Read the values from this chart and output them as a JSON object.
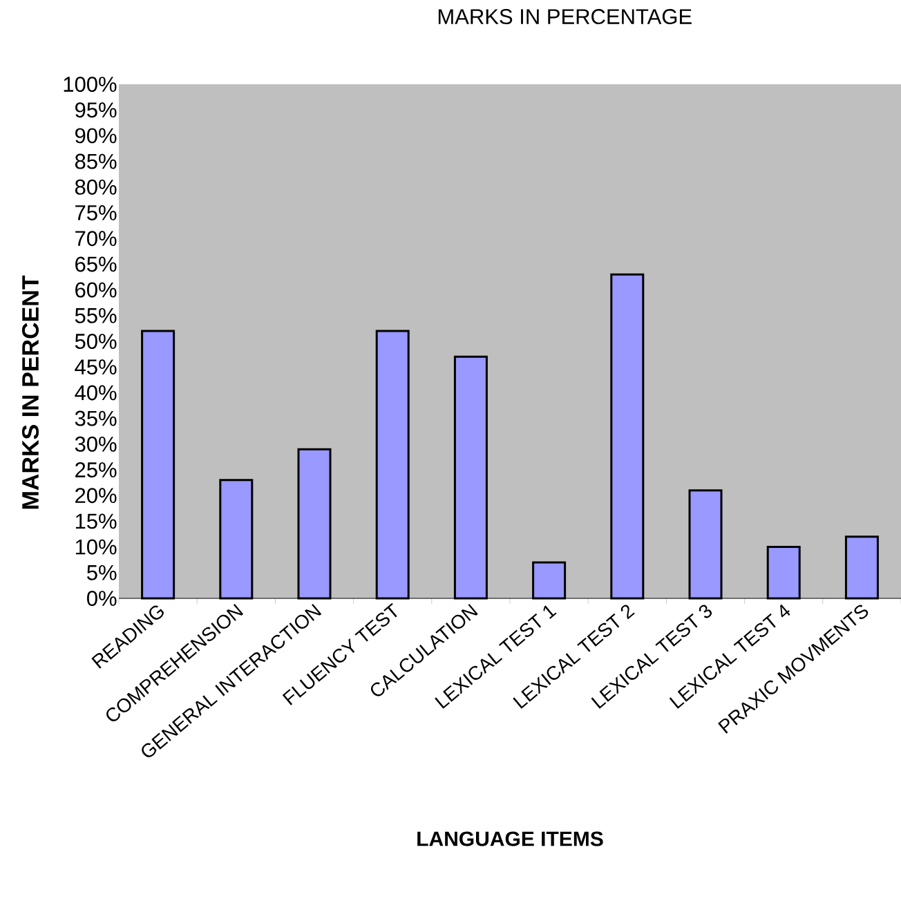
{
  "chart_data": {
    "type": "bar",
    "title": "MARKS IN PERCENTAGE",
    "xlabel": "LANGUAGE ITEMS",
    "ylabel": "MARKS IN PERCENT",
    "categories": [
      "READING",
      "COMPREHENSION",
      "GENERAL INTERACTION",
      "FLUENCY TEST",
      "CALCULATION",
      "LEXICAL TEST 1",
      "LEXICAL TEST 2",
      "LEXICAL TEST 3",
      "LEXICAL TEST 4",
      "PRAXIC MOVMENTS"
    ],
    "values": [
      52,
      23,
      29,
      52,
      47,
      7,
      63,
      21,
      10,
      12
    ],
    "color": "#9999ff",
    "ylim": [
      0,
      100
    ],
    "yticks": [
      {
        "value": 0,
        "label": "0%"
      },
      {
        "value": 5,
        "label": "5%"
      },
      {
        "value": 10,
        "label": "10%"
      },
      {
        "value": 15,
        "label": "15%"
      },
      {
        "value": 20,
        "label": "20%"
      },
      {
        "value": 25,
        "label": "25%"
      },
      {
        "value": 30,
        "label": "30%"
      },
      {
        "value": 35,
        "label": "35%"
      },
      {
        "value": 40,
        "label": "40%"
      },
      {
        "value": 45,
        "label": "45%"
      },
      {
        "value": 50,
        "label": "50%"
      },
      {
        "value": 55,
        "label": "55%"
      },
      {
        "value": 60,
        "label": "60%"
      },
      {
        "value": 65,
        "label": "65%"
      },
      {
        "value": 70,
        "label": "70%"
      },
      {
        "value": 75,
        "label": "75%"
      },
      {
        "value": 80,
        "label": "80%"
      },
      {
        "value": 85,
        "label": "85%"
      },
      {
        "value": 90,
        "label": "90%"
      },
      {
        "value": 95,
        "label": "95%"
      },
      {
        "value": 100,
        "label": "100%"
      }
    ],
    "grid": false
  }
}
